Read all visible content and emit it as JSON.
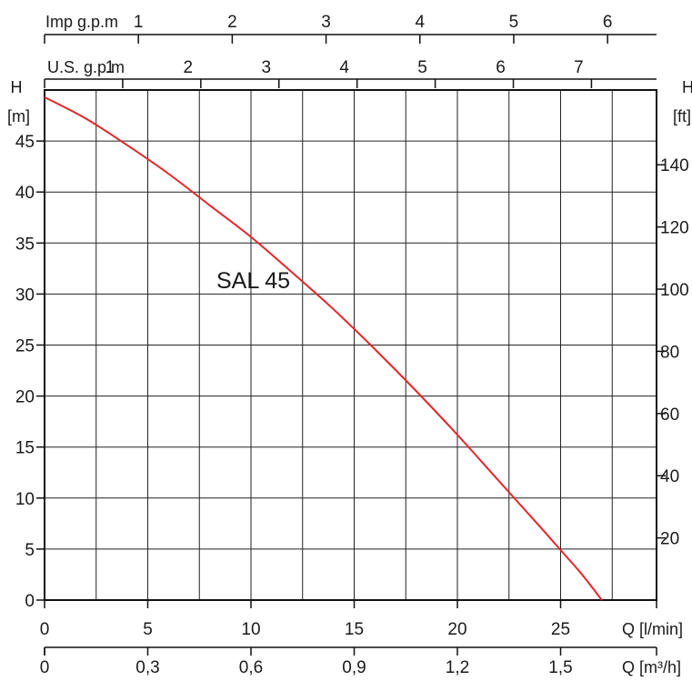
{
  "chart_data": {
    "type": "line",
    "series": [
      {
        "name": "SAL 45",
        "x": [
          0,
          2,
          4,
          6,
          8,
          10,
          12,
          14,
          16,
          18,
          20,
          22,
          24,
          25,
          26,
          27
        ],
        "values": [
          49.3,
          47.2,
          44.6,
          41.8,
          38.7,
          35.6,
          32.1,
          28.5,
          24.6,
          20.5,
          16.2,
          11.7,
          7.2,
          4.9,
          2.6,
          0
        ]
      }
    ],
    "xlabel": "Q [l/min]",
    "ylabel": "H [m]",
    "xlim": [
      0,
      30
    ],
    "ylim": [
      0,
      50
    ],
    "grid": true,
    "left_axis": {
      "title_line1": "H",
      "title_line2": "[m]",
      "ticks": [
        "0",
        "5",
        "10",
        "15",
        "20",
        "25",
        "30",
        "35",
        "40",
        "45"
      ]
    },
    "right_axis": {
      "title_line1": "H",
      "title_line2": "[ft]",
      "ticks": [
        "20",
        "40",
        "60",
        "80",
        "100",
        "120",
        "140"
      ]
    },
    "bottom_axis_lmin": {
      "title": "Q [l/min]",
      "ticks": [
        "0",
        "5",
        "10",
        "15",
        "20",
        "25"
      ]
    },
    "bottom_axis_m3h": {
      "title": "Q [m³/h]",
      "ticks": [
        "0",
        "0,3",
        "0,6",
        "0,9",
        "1,2",
        "1,5"
      ]
    },
    "top_axis_us_gpm": {
      "title": "U.S. g.p.m",
      "ticks": [
        "1",
        "2",
        "3",
        "4",
        "5",
        "6",
        "7"
      ]
    },
    "top_axis_imp_gpm": {
      "title": "Imp g.p.m",
      "ticks": [
        "1",
        "2",
        "3",
        "4",
        "5",
        "6"
      ]
    },
    "colors": {
      "curve": "#e3262b",
      "grid": "#222222"
    }
  }
}
